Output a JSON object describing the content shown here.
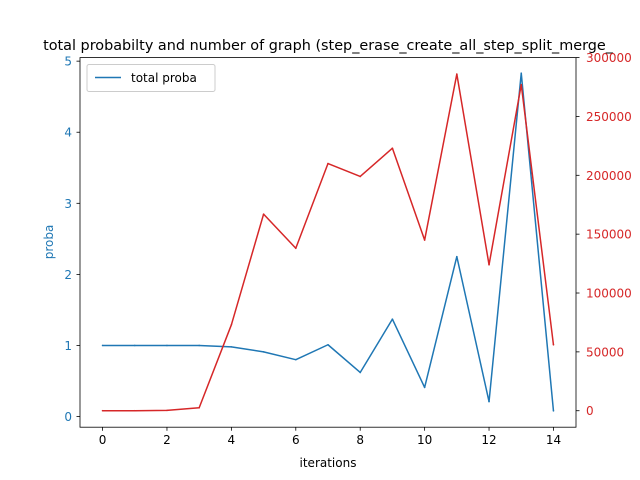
{
  "chart_data": {
    "type": "line",
    "title": "total probabilty and number of graph (step_erase_create_all_step_split_merge_",
    "xlabel": "iterations",
    "x": [
      0,
      1,
      2,
      3,
      4,
      5,
      6,
      7,
      8,
      9,
      10,
      11,
      12,
      13,
      14
    ],
    "xlim": [
      -0.7,
      14.7
    ],
    "xticks": [
      "0",
      "2",
      "4",
      "6",
      "8",
      "10",
      "12",
      "14"
    ],
    "xtick_values": [
      0,
      2,
      4,
      6,
      8,
      10,
      12,
      14
    ],
    "left_axis": {
      "ylabel": "proba",
      "ylim": [
        -0.15,
        5.05
      ],
      "yticks": [
        "0",
        "1",
        "2",
        "3",
        "4",
        "5"
      ],
      "ytick_values": [
        0,
        1,
        2,
        3,
        4,
        5
      ],
      "color": "#1f77b4"
    },
    "right_axis": {
      "ylabel": "",
      "ylim": [
        -14000,
        300000
      ],
      "yticks": [
        "0",
        "50000",
        "100000",
        "150000",
        "200000",
        "250000",
        "300000"
      ],
      "ytick_values": [
        0,
        50000,
        100000,
        150000,
        200000,
        250000,
        300000
      ],
      "color": "#d62728"
    },
    "series": [
      {
        "name": "total proba",
        "axis": "left",
        "color": "#1f77b4",
        "values": [
          1.0,
          1.0,
          1.0,
          1.0,
          0.98,
          0.91,
          0.8,
          1.01,
          0.62,
          1.37,
          0.41,
          2.25,
          0.21,
          4.83,
          0.08
        ]
      },
      {
        "axis": "right",
        "color": "#d62728",
        "values": [
          0,
          0,
          300,
          2500,
          73000,
          167000,
          138000,
          210000,
          199000,
          223000,
          145000,
          286000,
          124000,
          277000,
          56000
        ]
      }
    ],
    "legend": {
      "position": "top-left",
      "entries": [
        "total proba"
      ]
    },
    "grid": false
  }
}
